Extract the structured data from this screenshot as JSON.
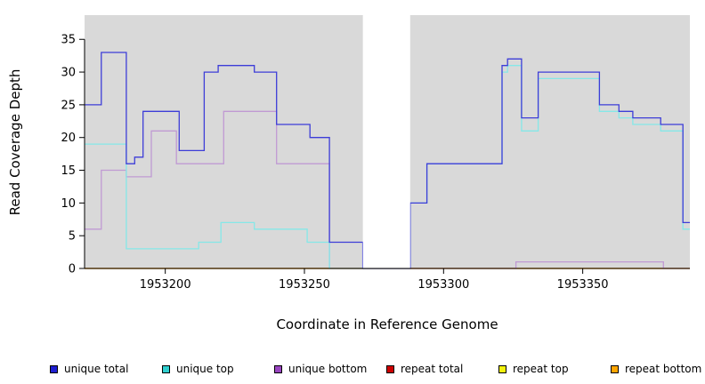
{
  "chart_data": {
    "type": "line",
    "subtype": "step-coverage",
    "title": "",
    "xlabel": "Coordinate in Reference Genome",
    "ylabel": "Read Coverage Depth",
    "xlim": [
      1953171,
      1953388.5
    ],
    "ylim": [
      0,
      38.7
    ],
    "x_ticks": [
      1953200,
      1953250,
      1953300,
      1953350
    ],
    "y_ticks": [
      0,
      5,
      10,
      15,
      20,
      25,
      30,
      35
    ],
    "plot_bg": "#d9d9d9",
    "grid": false,
    "legend_position": "bottom",
    "gap_region": {
      "start": 1953271,
      "end": 1953288
    },
    "series": [
      {
        "name": "repeat total",
        "color": "#d04040",
        "steps": [
          [
            1953171,
            0
          ]
        ]
      },
      {
        "name": "repeat top",
        "color": "#f0f040",
        "steps": [
          [
            1953171,
            0
          ]
        ]
      },
      {
        "name": "repeat bottom",
        "color": "#ffa63d",
        "steps": [
          [
            1953171,
            0
          ]
        ]
      },
      {
        "name": "unique bottom",
        "color": "#c09ad3",
        "steps": [
          [
            1953171,
            6
          ],
          [
            1953177,
            15
          ],
          [
            1953186,
            14
          ],
          [
            1953195,
            21
          ],
          [
            1953204,
            16
          ],
          [
            1953221,
            24
          ],
          [
            1953240,
            16
          ],
          [
            1953259,
            0
          ],
          [
            1953326,
            1
          ],
          [
            1953379,
            0
          ]
        ]
      },
      {
        "name": "unique top",
        "color": "#85e8e8",
        "steps": [
          [
            1953171,
            19
          ],
          [
            1953186,
            3
          ],
          [
            1953212,
            4
          ],
          [
            1953220,
            7
          ],
          [
            1953232,
            6
          ],
          [
            1953251,
            4
          ],
          [
            1953259,
            0
          ],
          [
            1953288,
            10
          ],
          [
            1953294,
            16
          ],
          [
            1953321,
            30
          ],
          [
            1953323,
            31
          ],
          [
            1953328,
            21
          ],
          [
            1953334,
            29
          ],
          [
            1953356,
            24
          ],
          [
            1953363,
            23
          ],
          [
            1953368,
            22
          ],
          [
            1953378,
            21
          ],
          [
            1953386,
            6
          ]
        ]
      },
      {
        "name": "unique total",
        "color": "#3d3dd8",
        "steps": [
          [
            1953171,
            25
          ],
          [
            1953177,
            33
          ],
          [
            1953186,
            16
          ],
          [
            1953189,
            17
          ],
          [
            1953192,
            24
          ],
          [
            1953205,
            18
          ],
          [
            1953214,
            30
          ],
          [
            1953219,
            31
          ],
          [
            1953232,
            30
          ],
          [
            1953240,
            22
          ],
          [
            1953252,
            20
          ],
          [
            1953259,
            4
          ],
          [
            1953271,
            0
          ],
          [
            1953288,
            10
          ],
          [
            1953294,
            16
          ],
          [
            1953321,
            31
          ],
          [
            1953323,
            32
          ],
          [
            1953328,
            23
          ],
          [
            1953334,
            30
          ],
          [
            1953356,
            25
          ],
          [
            1953363,
            24
          ],
          [
            1953368,
            23
          ],
          [
            1953378,
            22
          ],
          [
            1953386,
            7
          ]
        ]
      }
    ]
  },
  "legend": {
    "items": [
      {
        "label": "unique total",
        "color": "#1f1fd1"
      },
      {
        "label": "unique top",
        "color": "#30cfcf"
      },
      {
        "label": "unique bottom",
        "color": "#9945c0"
      },
      {
        "label": "repeat total",
        "color": "#cd0000"
      },
      {
        "label": "repeat top",
        "color": "#f2f20c"
      },
      {
        "label": "repeat bottom",
        "color": "#ffa500"
      }
    ]
  }
}
